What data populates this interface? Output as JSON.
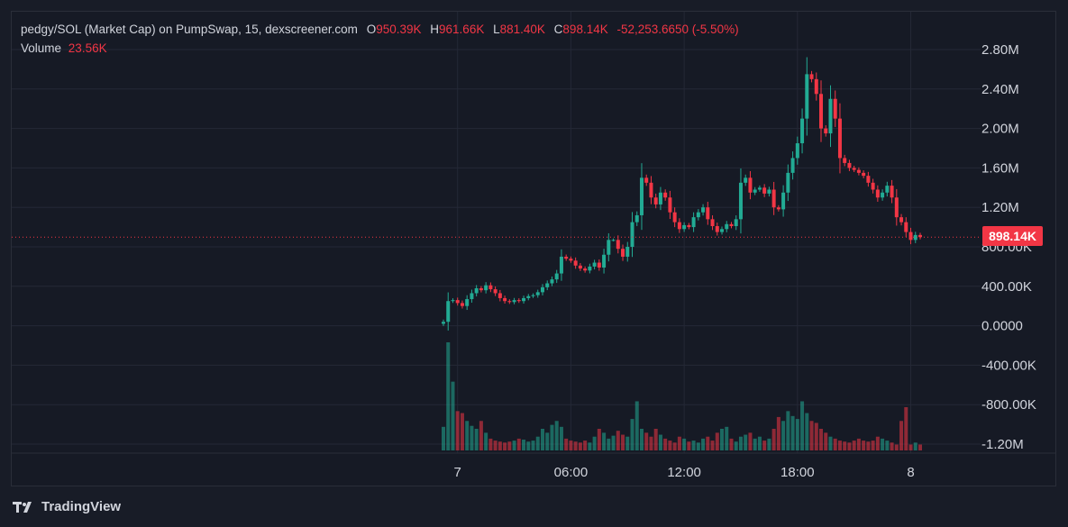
{
  "legend": {
    "symbol": "pedgy/SOL (Market Cap) on PumpSwap, 15, dexscreener.com",
    "o_label": "O",
    "o_value": "950.39K",
    "h_label": "H",
    "h_value": "961.66K",
    "l_label": "L",
    "l_value": "881.40K",
    "c_label": "C",
    "c_value": "898.14K",
    "change": "-52,253.6650 (-5.50%)",
    "volume_label": "Volume",
    "volume_value": "23.56K"
  },
  "price_tag": "898.14K",
  "footer": {
    "brand": "TradingView",
    "logo_icon": "tradingview-logo-icon"
  },
  "colors": {
    "up": "#22ab94",
    "down": "#f23645",
    "background": "#161a25",
    "grid": "#242836",
    "text": "#d1d4dc"
  },
  "chart_data": {
    "type": "candlestick",
    "title": "pedgy/SOL (Market Cap) on PumpSwap, 15, dexscreener.com",
    "interval": "15",
    "x_ticks": [
      "7",
      "06:00",
      "12:00",
      "18:00",
      "8"
    ],
    "y_ticks": [
      "2.80M",
      "2.40M",
      "2.00M",
      "1.60M",
      "1.20M",
      "800.00K",
      "400.00K",
      "0.0000",
      "-400.00K",
      "-800.00K",
      "-1.20M"
    ],
    "ylim": [
      -1200000,
      2800000
    ],
    "y_tick_values": [
      2800000,
      2400000,
      2000000,
      1600000,
      1200000,
      800000,
      400000,
      0,
      -400000,
      -800000,
      -1200000
    ],
    "last_price": 898140,
    "grid": true,
    "close_series": [
      40000,
      250000,
      260000,
      230000,
      200000,
      270000,
      330000,
      380000,
      360000,
      410000,
      370000,
      330000,
      280000,
      250000,
      240000,
      260000,
      250000,
      280000,
      300000,
      310000,
      340000,
      390000,
      430000,
      470000,
      530000,
      700000,
      680000,
      660000,
      610000,
      580000,
      560000,
      600000,
      640000,
      590000,
      720000,
      870000,
      870000,
      780000,
      700000,
      800000,
      1050000,
      1120000,
      1500000,
      1450000,
      1300000,
      1230000,
      1350000,
      1300000,
      1150000,
      1050000,
      980000,
      1020000,
      1000000,
      1100000,
      1150000,
      1200000,
      1080000,
      1010000,
      950000,
      980000,
      1030000,
      1010000,
      1080000,
      1450000,
      1500000,
      1350000,
      1380000,
      1400000,
      1340000,
      1380000,
      1200000,
      1180000,
      1350000,
      1550000,
      1700000,
      1850000,
      2100000,
      2550000,
      2500000,
      2350000,
      2000000,
      1950000,
      2300000,
      2100000,
      1700000,
      1650000,
      1600000,
      1580000,
      1550000,
      1520000,
      1450000,
      1380000,
      1300000,
      1350000,
      1420000,
      1300000,
      1100000,
      1050000,
      950000,
      870000,
      920000,
      898140
    ],
    "volume_series": [
      24,
      110,
      70,
      40,
      38,
      30,
      25,
      22,
      30,
      18,
      12,
      10,
      9,
      8,
      9,
      10,
      12,
      11,
      9,
      10,
      14,
      22,
      18,
      26,
      30,
      24,
      12,
      10,
      9,
      8,
      10,
      8,
      14,
      22,
      18,
      12,
      15,
      20,
      16,
      14,
      32,
      50,
      22,
      18,
      14,
      22,
      16,
      12,
      10,
      8,
      14,
      12,
      9,
      10,
      8,
      12,
      14,
      10,
      18,
      22,
      24,
      12,
      9,
      14,
      16,
      18,
      12,
      14,
      10,
      12,
      22,
      34,
      30,
      40,
      35,
      32,
      50,
      38,
      30,
      28,
      22,
      18,
      14,
      12,
      10,
      9,
      8,
      10,
      12,
      10,
      9,
      10,
      14,
      12,
      10,
      8,
      6,
      30,
      44,
      6,
      8,
      6
    ]
  }
}
